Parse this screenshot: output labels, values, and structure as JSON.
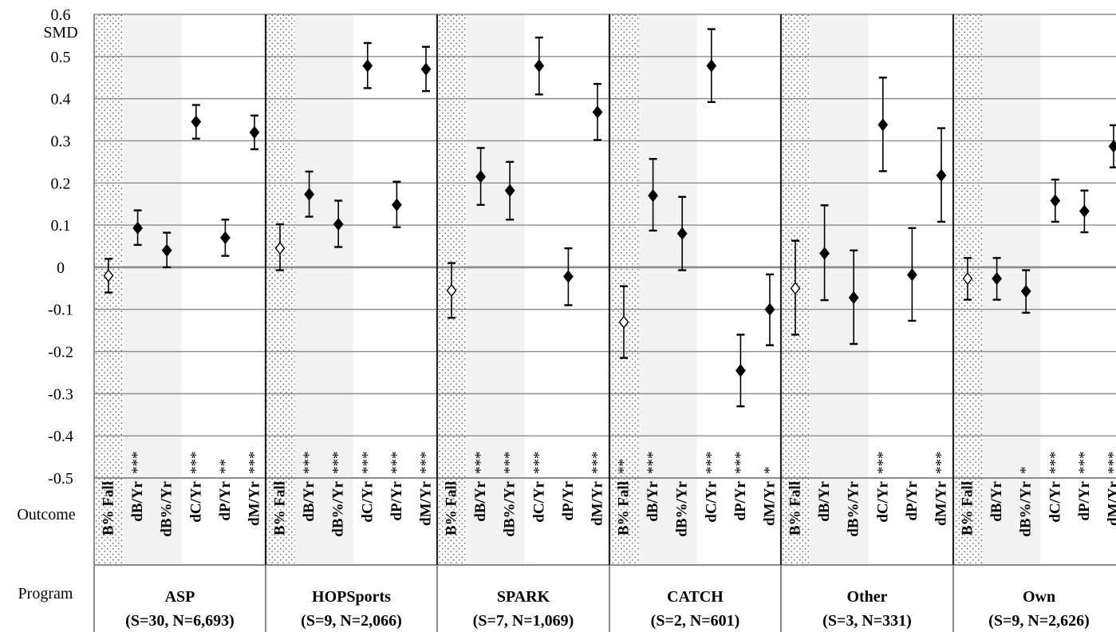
{
  "chart_data": {
    "type": "scatter",
    "ylabel": "SMD",
    "ylim": [
      -0.5,
      0.6
    ],
    "yticks": [
      "0.6",
      "0.5",
      "0.4",
      "0.3",
      "0.2",
      "0.1",
      "0",
      "-0.1",
      "-0.2",
      "-0.3",
      "-0.4",
      "-0.5"
    ],
    "grid": true,
    "row_labels": {
      "outcome": "Outcome",
      "program": "Program"
    },
    "outcomes": [
      "B% Fall",
      "dB/Yr",
      "dB%/Yr",
      "dC/Yr",
      "dP/Yr",
      "dM/Yr"
    ],
    "groups": [
      {
        "name": "ASP",
        "n": "(S=30, N=6,693)",
        "points": [
          {
            "outcome": "B% Fall",
            "y": -0.02,
            "lo": -0.06,
            "hi": 0.02,
            "sig": ""
          },
          {
            "outcome": "dB/Yr",
            "y": 0.093,
            "lo": 0.053,
            "hi": 0.135,
            "sig": "***"
          },
          {
            "outcome": "dB%/Yr",
            "y": 0.04,
            "lo": 0.0,
            "hi": 0.082,
            "sig": ""
          },
          {
            "outcome": "dC/Yr",
            "y": 0.345,
            "lo": 0.305,
            "hi": 0.385,
            "sig": "***"
          },
          {
            "outcome": "dP/Yr",
            "y": 0.07,
            "lo": 0.027,
            "hi": 0.113,
            "sig": "**"
          },
          {
            "outcome": "dM/Yr",
            "y": 0.32,
            "lo": 0.28,
            "hi": 0.36,
            "sig": "***"
          }
        ]
      },
      {
        "name": "HOPSports",
        "n": "(S=9, N=2,066)",
        "points": [
          {
            "outcome": "B% Fall",
            "y": 0.045,
            "lo": -0.007,
            "hi": 0.102,
            "sig": ""
          },
          {
            "outcome": "dB/Yr",
            "y": 0.173,
            "lo": 0.12,
            "hi": 0.227,
            "sig": "***"
          },
          {
            "outcome": "dB%/Yr",
            "y": 0.102,
            "lo": 0.048,
            "hi": 0.158,
            "sig": "***"
          },
          {
            "outcome": "dC/Yr",
            "y": 0.478,
            "lo": 0.425,
            "hi": 0.532,
            "sig": "***"
          },
          {
            "outcome": "dP/Yr",
            "y": 0.148,
            "lo": 0.095,
            "hi": 0.203,
            "sig": "***"
          },
          {
            "outcome": "dM/Yr",
            "y": 0.47,
            "lo": 0.418,
            "hi": 0.523,
            "sig": "***"
          }
        ]
      },
      {
        "name": "SPARK",
        "n": "(S=7, N=1,069)",
        "points": [
          {
            "outcome": "B% Fall",
            "y": -0.055,
            "lo": -0.12,
            "hi": 0.01,
            "sig": ""
          },
          {
            "outcome": "dB/Yr",
            "y": 0.215,
            "lo": 0.148,
            "hi": 0.283,
            "sig": "***"
          },
          {
            "outcome": "dB%/Yr",
            "y": 0.182,
            "lo": 0.113,
            "hi": 0.25,
            "sig": "***"
          },
          {
            "outcome": "dC/Yr",
            "y": 0.478,
            "lo": 0.41,
            "hi": 0.545,
            "sig": "***"
          },
          {
            "outcome": "dP/Yr",
            "y": -0.022,
            "lo": -0.09,
            "hi": 0.045,
            "sig": ""
          },
          {
            "outcome": "dM/Yr",
            "y": 0.368,
            "lo": 0.302,
            "hi": 0.435,
            "sig": "***"
          }
        ]
      },
      {
        "name": "CATCH",
        "n": "(S=2, N=601)",
        "points": [
          {
            "outcome": "B% Fall",
            "y": -0.13,
            "lo": -0.215,
            "hi": -0.045,
            "sig": "**"
          },
          {
            "outcome": "dB/Yr",
            "y": 0.17,
            "lo": 0.087,
            "hi": 0.257,
            "sig": "***"
          },
          {
            "outcome": "dB%/Yr",
            "y": 0.08,
            "lo": -0.007,
            "hi": 0.167,
            "sig": ""
          },
          {
            "outcome": "dC/Yr",
            "y": 0.478,
            "lo": 0.392,
            "hi": 0.565,
            "sig": "***"
          },
          {
            "outcome": "dP/Yr",
            "y": -0.245,
            "lo": -0.33,
            "hi": -0.16,
            "sig": "***"
          },
          {
            "outcome": "dM/Yr",
            "y": -0.1,
            "lo": -0.185,
            "hi": -0.017,
            "sig": "*"
          }
        ]
      },
      {
        "name": "Other",
        "n": "(S=3, N=331)",
        "points": [
          {
            "outcome": "B% Fall",
            "y": -0.05,
            "lo": -0.16,
            "hi": 0.063,
            "sig": ""
          },
          {
            "outcome": "dB/Yr",
            "y": 0.033,
            "lo": -0.078,
            "hi": 0.147,
            "sig": ""
          },
          {
            "outcome": "dB%/Yr",
            "y": -0.072,
            "lo": -0.182,
            "hi": 0.04,
            "sig": ""
          },
          {
            "outcome": "dC/Yr",
            "y": 0.338,
            "lo": 0.228,
            "hi": 0.45,
            "sig": "***"
          },
          {
            "outcome": "dP/Yr",
            "y": -0.018,
            "lo": -0.127,
            "hi": 0.093,
            "sig": ""
          },
          {
            "outcome": "dM/Yr",
            "y": 0.218,
            "lo": 0.108,
            "hi": 0.33,
            "sig": "***"
          }
        ]
      },
      {
        "name": "Own",
        "n": "(S=9, N=2,626)",
        "points": [
          {
            "outcome": "B% Fall",
            "y": -0.027,
            "lo": -0.077,
            "hi": 0.022,
            "sig": ""
          },
          {
            "outcome": "dB/Yr",
            "y": -0.027,
            "lo": -0.077,
            "hi": 0.022,
            "sig": ""
          },
          {
            "outcome": "dB%/Yr",
            "y": -0.057,
            "lo": -0.108,
            "hi": -0.007,
            "sig": "*"
          },
          {
            "outcome": "dC/Yr",
            "y": 0.158,
            "lo": 0.108,
            "hi": 0.208,
            "sig": "***"
          },
          {
            "outcome": "dP/Yr",
            "y": 0.133,
            "lo": 0.083,
            "hi": 0.182,
            "sig": "***"
          },
          {
            "outcome": "dM/Yr",
            "y": 0.287,
            "lo": 0.237,
            "hi": 0.337,
            "sig": "***"
          }
        ]
      }
    ]
  }
}
